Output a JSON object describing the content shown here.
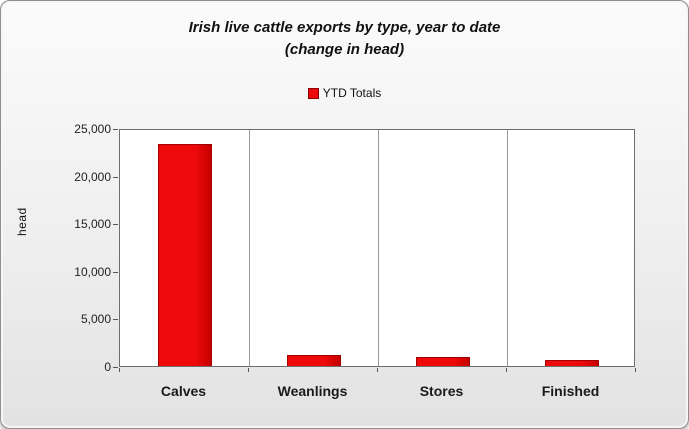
{
  "chart_data": {
    "type": "bar",
    "title": "Irish live cattle exports by type, year to date",
    "subtitle": "(change in head)",
    "legend_label": "YTD Totals",
    "legend_position": "top-center",
    "categories": [
      "Calves",
      "Weanlings",
      "Stores",
      "Finished"
    ],
    "values": [
      23300,
      1200,
      950,
      650
    ],
    "xlabel": "",
    "ylabel": "head",
    "ylim": [
      0,
      25000
    ],
    "ytick_step": 5000,
    "ytick_labels": [
      "0",
      "5,000",
      "10,000",
      "15,000",
      "20,000",
      "25,000"
    ],
    "bar_color": "#ee0a0a",
    "bar_border_color": "#a00000",
    "grid": "vertical-dividers-only",
    "plot_background": "#ffffff"
  }
}
